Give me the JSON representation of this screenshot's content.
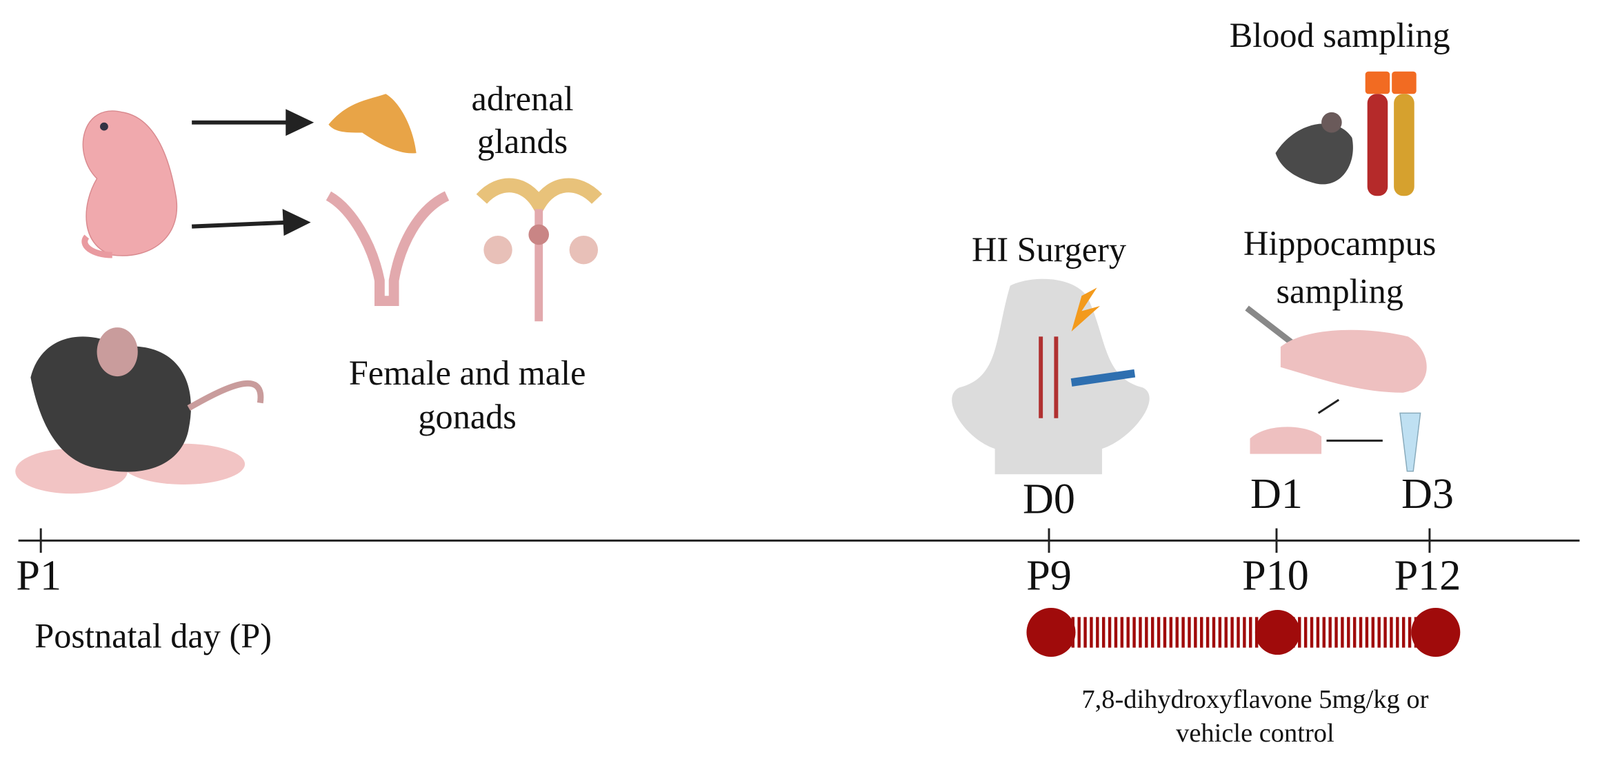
{
  "labels": {
    "adrenal": [
      "adrenal",
      "glands"
    ],
    "gonads": [
      "Female and male",
      "gonads"
    ],
    "blood": "Blood sampling",
    "surgery": "HI Surgery",
    "hippocampus": [
      "Hippocampus",
      "sampling"
    ],
    "treatment": [
      "7,8-dihydroxyflavone 5mg/kg or",
      "vehicle control"
    ]
  },
  "timeline": {
    "axis_label": "Postnatal day (P)",
    "postnatal_days": [
      "P1",
      "P9",
      "P10",
      "P12"
    ],
    "experiment_days": [
      "D0",
      "D1",
      "D3"
    ]
  }
}
